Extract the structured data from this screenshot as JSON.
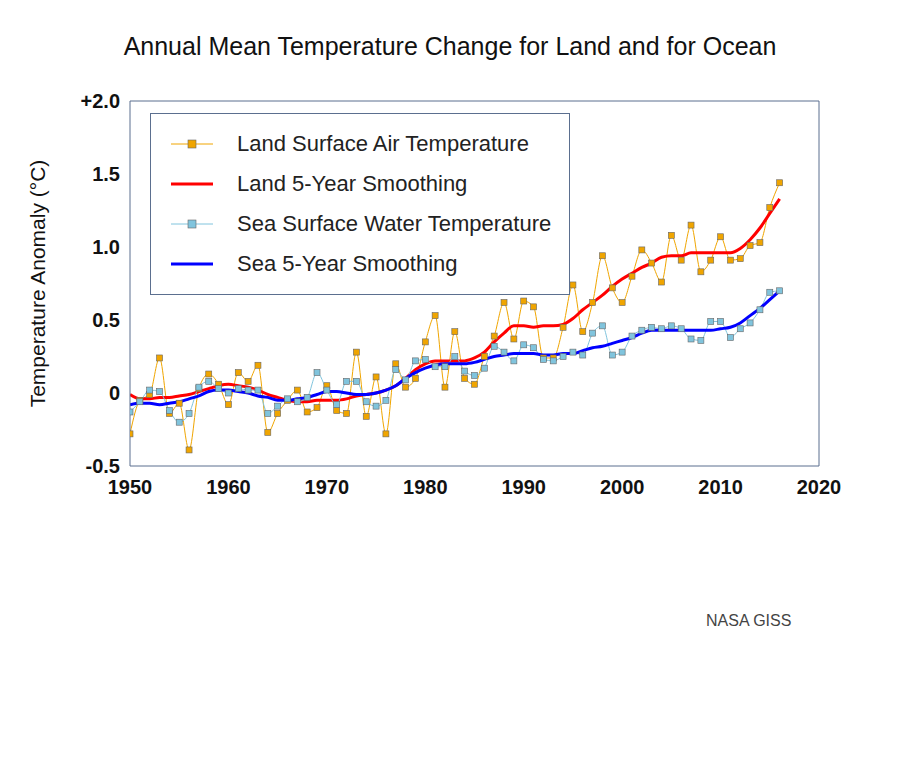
{
  "chart_data": {
    "type": "line",
    "title": "Annual Mean Temperature Change for Land and for Ocean",
    "y_label": "Temperature Anomaly (°C)",
    "annotation": "NASA GISS",
    "legend": "upper left",
    "grid": false,
    "x": [
      1950,
      1951,
      1952,
      1953,
      1954,
      1955,
      1956,
      1957,
      1958,
      1959,
      1960,
      1961,
      1962,
      1963,
      1964,
      1965,
      1966,
      1967,
      1968,
      1969,
      1970,
      1971,
      1972,
      1973,
      1974,
      1975,
      1976,
      1977,
      1978,
      1979,
      1980,
      1981,
      1982,
      1983,
      1984,
      1985,
      1986,
      1987,
      1988,
      1989,
      1990,
      1991,
      1992,
      1993,
      1994,
      1995,
      1996,
      1997,
      1998,
      1999,
      2000,
      2001,
      2002,
      2003,
      2004,
      2005,
      2006,
      2007,
      2008,
      2009,
      2010,
      2011,
      2012,
      2013,
      2014,
      2015,
      2016
    ],
    "xlim": [
      1950,
      2020
    ],
    "xticks": [
      1950,
      1960,
      1970,
      1980,
      1990,
      2000,
      2010,
      2020
    ],
    "ylim": [
      -0.5,
      2.0
    ],
    "yticks": [
      -0.5,
      0,
      0.5,
      {
        "value": 1,
        "label": "1.0"
      },
      1.5,
      {
        "value": 2,
        "label": "+2.0"
      }
    ],
    "series": [
      {
        "name": "Land Surface Air Temperature",
        "color": "#f0a500",
        "marker": "square",
        "line_style": "solid",
        "values": [
          -0.28,
          -0.05,
          -0.01,
          0.24,
          -0.14,
          -0.07,
          -0.39,
          0.03,
          0.13,
          0.06,
          -0.08,
          0.14,
          0.08,
          0.19,
          -0.27,
          -0.14,
          -0.05,
          0.02,
          -0.13,
          -0.1,
          0.05,
          -0.12,
          -0.14,
          0.28,
          -0.16,
          0.11,
          -0.28,
          0.2,
          0.04,
          0.1,
          0.35,
          0.53,
          0.04,
          0.42,
          0.1,
          0.06,
          0.25,
          0.39,
          0.62,
          0.37,
          0.63,
          0.59,
          0.24,
          0.24,
          0.45,
          0.74,
          0.42,
          0.62,
          0.94,
          0.72,
          0.62,
          0.8,
          0.98,
          0.89,
          0.76,
          1.08,
          0.91,
          1.15,
          0.83,
          0.91,
          1.07,
          0.91,
          0.92,
          1.01,
          1.03,
          1.27,
          1.44
        ]
      },
      {
        "name": "Land 5-Year Smoothing",
        "color": "#ff0000",
        "line_style": "solid",
        "values": [
          -0.01,
          -0.04,
          -0.04,
          -0.03,
          -0.03,
          -0.02,
          -0.01,
          0.01,
          0.03,
          0.05,
          0.06,
          0.05,
          0.04,
          0.02,
          -0.01,
          -0.03,
          -0.05,
          -0.06,
          -0.06,
          -0.05,
          -0.05,
          -0.05,
          -0.04,
          -0.02,
          -0.01,
          0,
          0.02,
          0.05,
          0.1,
          0.16,
          0.2,
          0.22,
          0.22,
          0.22,
          0.22,
          0.24,
          0.28,
          0.35,
          0.41,
          0.46,
          0.46,
          0.45,
          0.46,
          0.46,
          0.47,
          0.51,
          0.57,
          0.62,
          0.67,
          0.73,
          0.78,
          0.82,
          0.86,
          0.89,
          0.93,
          0.94,
          0.94,
          0.96,
          0.96,
          0.96,
          0.96,
          0.96,
          0.99,
          1.05,
          1.13,
          1.23,
          1.33
        ]
      },
      {
        "name": "Sea Surface Water Temperature",
        "color": "#80c4dd",
        "marker": "square",
        "line_style": "solid",
        "values": [
          -0.13,
          -0.06,
          0.02,
          0.01,
          -0.12,
          -0.2,
          -0.14,
          0.04,
          0.08,
          0.03,
          0,
          0.03,
          0.02,
          0.02,
          -0.14,
          -0.09,
          -0.04,
          -0.06,
          -0.03,
          0.14,
          0.02,
          -0.08,
          0.08,
          0.08,
          -0.06,
          -0.09,
          -0.05,
          0.16,
          0.09,
          0.22,
          0.23,
          0.18,
          0.18,
          0.25,
          0.15,
          0.12,
          0.17,
          0.32,
          0.28,
          0.22,
          0.33,
          0.31,
          0.23,
          0.22,
          0.25,
          0.28,
          0.26,
          0.41,
          0.46,
          0.26,
          0.28,
          0.39,
          0.43,
          0.45,
          0.44,
          0.46,
          0.44,
          0.37,
          0.36,
          0.49,
          0.49,
          0.38,
          0.44,
          0.48,
          0.57,
          0.69,
          0.7
        ]
      },
      {
        "name": "Sea 5-Year Smoothing",
        "color": "#0000ff",
        "line_style": "solid",
        "values": [
          -0.08,
          -0.07,
          -0.07,
          -0.08,
          -0.07,
          -0.06,
          -0.04,
          -0.02,
          0.01,
          0.02,
          0.02,
          0.01,
          0,
          -0.02,
          -0.03,
          -0.05,
          -0.05,
          -0.04,
          -0.03,
          -0.01,
          0.01,
          0.01,
          0,
          -0.01,
          -0.01,
          0,
          0.02,
          0.05,
          0.1,
          0.14,
          0.17,
          0.19,
          0.2,
          0.2,
          0.2,
          0.21,
          0.23,
          0.25,
          0.26,
          0.27,
          0.27,
          0.27,
          0.26,
          0.26,
          0.27,
          0.27,
          0.29,
          0.31,
          0.32,
          0.34,
          0.36,
          0.38,
          0.41,
          0.43,
          0.43,
          0.43,
          0.43,
          0.43,
          0.43,
          0.43,
          0.44,
          0.45,
          0.48,
          0.53,
          0.58,
          0.64,
          0.7
        ]
      }
    ]
  }
}
